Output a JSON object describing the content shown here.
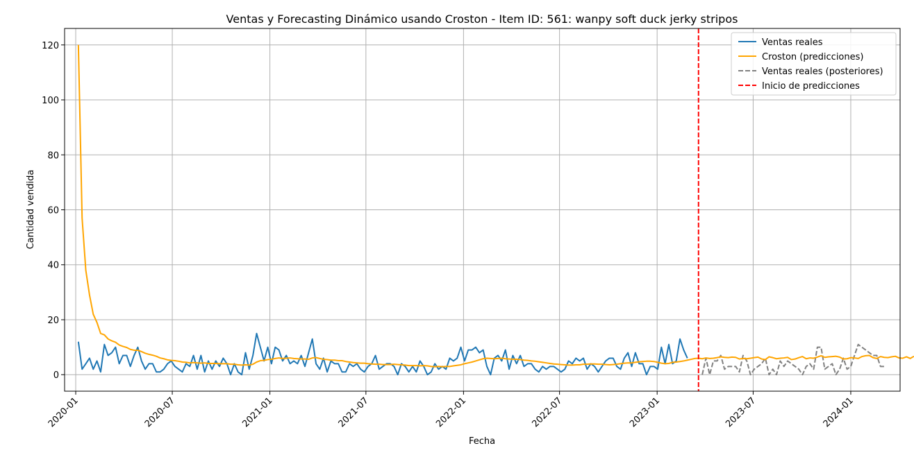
{
  "chart_data": {
    "type": "line",
    "title": "Ventas y Forecasting Dinámico usando Croston - Item ID: 561: wanpy soft duck jerky stripos",
    "xlabel": "Fecha",
    "ylabel": "Cantidad vendida",
    "ylim": [
      -6,
      126
    ],
    "xlim": [
      "2019-12-11",
      "2024-04-03"
    ],
    "grid": true,
    "legend_position": "top-right",
    "x_ticks": [
      "2020-01-01",
      "2020-07-01",
      "2021-01-01",
      "2021-07-01",
      "2022-01-01",
      "2022-07-01",
      "2023-01-01",
      "2023-07-01",
      "2024-01-01"
    ],
    "x_tick_labels": [
      "2020-01",
      "2020-07",
      "2021-01",
      "2021-07",
      "2022-01",
      "2022-07",
      "2023-01",
      "2023-07",
      "2024-01"
    ],
    "y_ticks": [
      0,
      20,
      40,
      60,
      80,
      100,
      120
    ],
    "prediction_start": "2023-03-20",
    "series": [
      {
        "name": "Ventas reales",
        "color": "#1f77b4",
        "style": "solid",
        "start": "2020-01-06",
        "interval_days": 7,
        "values": [
          12,
          2,
          4,
          6,
          2,
          5,
          1,
          11,
          7,
          8,
          10,
          4,
          7,
          7,
          3,
          7,
          10,
          5,
          2,
          4,
          4,
          1,
          1,
          2,
          4,
          5,
          3,
          2,
          1,
          4,
          3,
          7,
          2,
          7,
          1,
          5,
          2,
          5,
          3,
          6,
          4,
          0,
          4,
          1,
          0,
          8,
          2,
          7,
          15,
          10,
          5,
          10,
          4,
          10,
          9,
          5,
          7,
          4,
          5,
          4,
          7,
          3,
          8,
          13,
          4,
          2,
          6,
          1,
          5,
          4,
          4,
          1,
          1,
          4,
          3,
          4,
          2,
          1,
          3,
          4,
          7,
          2,
          3,
          4,
          4,
          3,
          0,
          4,
          3,
          1,
          3,
          1,
          5,
          3,
          0,
          1,
          4,
          2,
          3,
          2,
          6,
          5,
          6,
          10,
          5,
          9,
          9,
          10,
          8,
          9,
          3,
          0,
          6,
          7,
          5,
          9,
          2,
          7,
          4,
          7,
          3,
          4,
          4,
          2,
          1,
          3,
          2,
          3,
          3,
          2,
          1,
          2,
          5,
          4,
          6,
          5,
          6,
          2,
          4,
          3,
          1,
          3,
          5,
          6,
          6,
          3,
          2,
          6,
          8,
          3,
          8,
          4,
          4,
          0,
          3,
          3,
          2,
          10,
          4,
          11,
          4,
          5,
          13,
          9,
          6
        ]
      },
      {
        "name": "Croston (predicciones)",
        "color": "#ffa500",
        "style": "solid",
        "start": "2020-01-06",
        "interval_days": 7,
        "values": [
          120,
          57,
          38,
          29,
          22,
          19,
          15,
          14.5,
          13,
          12.3,
          11.8,
          10.8,
          10.3,
          9.9,
          9.2,
          8.9,
          8.9,
          8.4,
          7.8,
          7.4,
          7.1,
          6.7,
          6.1,
          5.8,
          5.4,
          5.2,
          5.1,
          4.9,
          4.6,
          4.5,
          4.3,
          4.4,
          4.3,
          4.2,
          4.3,
          4.1,
          4.1,
          4.1,
          4,
          4,
          4,
          3.8,
          3.8,
          3.6,
          3.5,
          3.6,
          3.5,
          3.8,
          4.6,
          5.1,
          5.2,
          5.5,
          5.6,
          5.9,
          6.1,
          5.9,
          6,
          6.1,
          5.9,
          5.8,
          5.7,
          5.7,
          5.6,
          6.1,
          6.2,
          5.9,
          5.6,
          5.5,
          5.3,
          5.3,
          5.1,
          5.1,
          4.8,
          4.6,
          4.4,
          4.3,
          4.2,
          4.2,
          4,
          3.9,
          3.8,
          3.8,
          3.7,
          3.7,
          3.7,
          3.8,
          3.7,
          3.6,
          3.5,
          3.3,
          3.3,
          3.3,
          3.2,
          3.3,
          3.2,
          3,
          2.9,
          3,
          2.9,
          3,
          3,
          3.2,
          3.4,
          3.6,
          4,
          4.3,
          4.6,
          5,
          5.4,
          5.8,
          6,
          5.9,
          5.8,
          5.9,
          6,
          5.8,
          5.7,
          5.6,
          5.6,
          5.5,
          5.3,
          5.2,
          5,
          4.9,
          4.7,
          4.5,
          4.3,
          4.1,
          3.9,
          3.8,
          3.7,
          3.6,
          3.5,
          3.5,
          3.6,
          3.6,
          3.8,
          3.8,
          3.9,
          3.9,
          3.8,
          3.8,
          3.7,
          3.6,
          3.7,
          3.8,
          4,
          4.2,
          4.3,
          4.3,
          4.5,
          4.7,
          4.8,
          4.9,
          4.9,
          4.8,
          4.5,
          4.2,
          4,
          4.1,
          4.5,
          4.6,
          4.8,
          5,
          5.3,
          5.6,
          5.9,
          6,
          5.8,
          6.1,
          5.9,
          6,
          6.2,
          6.5,
          6.3,
          6.2,
          6.4,
          6.3,
          5.7,
          5.9,
          5.8,
          6,
          6.2,
          6.4,
          5.7,
          5.5,
          6.5,
          6.2,
          5.8,
          6,
          6.1,
          6.3,
          5.5,
          5.7,
          6.2,
          6.6,
          5.8,
          6.1,
          6,
          6.4,
          6.9,
          6.3,
          6.5,
          6.6,
          6.7,
          6.4,
          5.7,
          5.8,
          6.2,
          6.1,
          5.9,
          6.6,
          6.9,
          7,
          6.2,
          5.9,
          6.6,
          6.3,
          6.2,
          6.5,
          6.7,
          6.1,
          6,
          6.5,
          5.9,
          6.7
        ]
      },
      {
        "name": "Ventas reales (posteriores)",
        "color": "#808080",
        "style": "dashed",
        "start": "2023-03-27",
        "interval_days": 7,
        "values": [
          0,
          6,
          0,
          5,
          5,
          7,
          2,
          3,
          3,
          3,
          1,
          7,
          5,
          0,
          2,
          3,
          4,
          6,
          0,
          2,
          0,
          5,
          3,
          5,
          4,
          3,
          2,
          0,
          3,
          4,
          2,
          10,
          10,
          2,
          3,
          4,
          0,
          2,
          6,
          2,
          3,
          7,
          11,
          10,
          9,
          8,
          7,
          7,
          3,
          3
        ]
      },
      {
        "name": "Inicio de predicciones",
        "color": "#ff0000",
        "style": "dashed-vertical"
      }
    ]
  }
}
